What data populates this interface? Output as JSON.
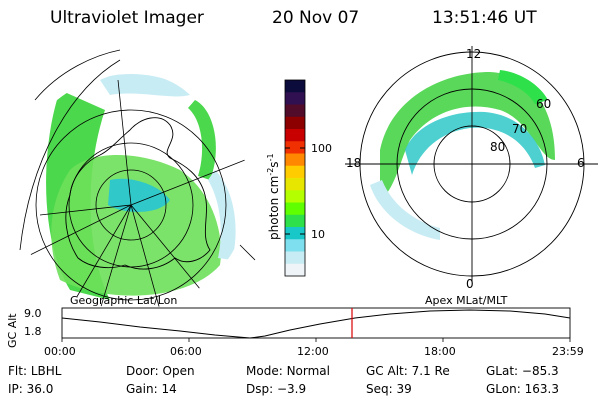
{
  "header": {
    "instrument": "Ultraviolet Imager",
    "date": "20 Nov 07",
    "time": "13:51:46 UT"
  },
  "left_panel": {
    "caption": "Geographic Lat/Lon"
  },
  "right_panel": {
    "caption": "Apex MLat/MLT",
    "mlt_labels": {
      "top": "12",
      "left": "18",
      "right": "6",
      "bottom": "0"
    },
    "lat_labels": [
      "60",
      "70",
      "80"
    ]
  },
  "colorbar": {
    "title": "photon cm",
    "title_sup1": "-2",
    "title_mid": "s",
    "title_sup2": "-1",
    "tick_labels": [
      "100",
      "10"
    ],
    "colors": [
      "#0c0c3c",
      "#301050",
      "#500c28",
      "#8c0000",
      "#c80000",
      "#f03000",
      "#ff8800",
      "#ffcc00",
      "#e6e600",
      "#b4ff00",
      "#60ff00",
      "#2ee04a",
      "#18c8c8",
      "#7ee0ee",
      "#c8ecf4",
      "#eef4f8"
    ]
  },
  "timeline": {
    "ylabel": "GC Alt",
    "y_ticks": [
      "9.0",
      "1.8"
    ],
    "x_ticks": [
      "00:00",
      "06:00",
      "12:00",
      "18:00",
      "23:59"
    ],
    "marker_time": "13:51:46",
    "marker_color": "#dd0000"
  },
  "status": {
    "row1": [
      {
        "key": "Flt:",
        "value": "LBHL"
      },
      {
        "key": "Door:",
        "value": "Open"
      },
      {
        "key": "Mode:",
        "value": "Normal"
      },
      {
        "key": "GC Alt:",
        "value": "7.1 Re"
      },
      {
        "key": "GLat:",
        "value": "−85.3"
      }
    ],
    "row2": [
      {
        "key": "IP:",
        "value": "36.0"
      },
      {
        "key": "Gain:",
        "value": "14"
      },
      {
        "key": "Dsp:",
        "value": "−3.9"
      },
      {
        "key": "Seq:",
        "value": "39"
      },
      {
        "key": "GLon:",
        "value": "163.3"
      }
    ]
  }
}
